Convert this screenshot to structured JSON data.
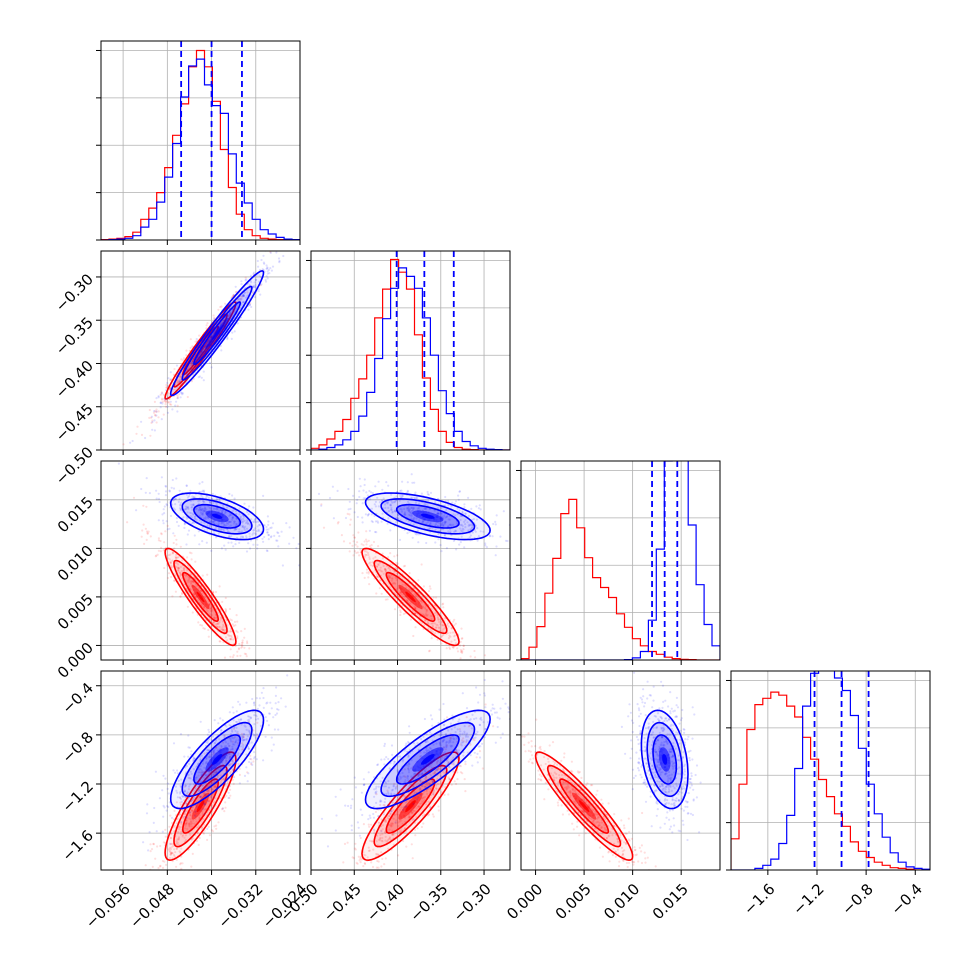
{
  "chart_data": {
    "type": "corner",
    "grid": true,
    "parameters": [
      {
        "range": [
          -0.06,
          -0.024
        ],
        "ticks": [
          -0.056,
          -0.048,
          -0.04,
          -0.032,
          -0.024
        ],
        "tick_labels": [
          "−0.056",
          "−0.048",
          "−0.040",
          "−0.032",
          "−0.024"
        ]
      },
      {
        "range": [
          -0.5,
          -0.27
        ],
        "ticks": [
          -0.5,
          -0.45,
          -0.4,
          -0.35,
          -0.3
        ],
        "tick_labels": [
          "−0.50",
          "−0.45",
          "−0.40",
          "−0.35",
          "−0.30"
        ]
      },
      {
        "range": [
          -0.0015,
          0.019
        ],
        "ticks": [
          0.0,
          0.005,
          0.01,
          0.015
        ],
        "tick_labels": [
          "0.000",
          "0.005",
          "0.010",
          "0.015"
        ]
      },
      {
        "range": [
          -1.9,
          -0.28
        ],
        "ticks": [
          -1.6,
          -1.2,
          -0.8,
          -0.4
        ],
        "tick_labels": [
          "−1.6",
          "−1.2",
          "−0.8",
          "−0.4"
        ]
      }
    ],
    "series": [
      {
        "color": "#ff0000",
        "mean": [
          -0.042,
          -0.385,
          0.005,
          -1.38
        ],
        "std": [
          0.0032,
          0.028,
          0.0025,
          0.22
        ],
        "corr": [
          [
            1,
            0.97,
            -0.92,
            0.86
          ],
          [
            0.97,
            1,
            -0.92,
            0.88
          ],
          [
            -0.92,
            -0.92,
            1,
            -0.93
          ],
          [
            0.86,
            0.88,
            -0.93,
            1
          ]
        ]
      },
      {
        "color": "#0000ff",
        "mean": [
          -0.039,
          -0.365,
          0.0133,
          -1.0
        ],
        "std": [
          0.0042,
          0.036,
          0.0012,
          0.2
        ],
        "corr": [
          [
            1,
            0.97,
            -0.55,
            0.8
          ],
          [
            0.97,
            1,
            -0.6,
            0.82
          ],
          [
            -0.55,
            -0.6,
            1,
            -0.3
          ],
          [
            0.8,
            0.82,
            -0.3,
            1
          ]
        ]
      }
    ],
    "quantile_lines": {
      "color": "#0000ff",
      "style": "dashed",
      "values": [
        [
          -0.0455,
          -0.04,
          -0.0345
        ],
        [
          -0.401,
          -0.369,
          -0.335
        ],
        [
          0.012,
          0.0133,
          0.0146
        ],
        [
          -1.22,
          -1.0,
          -0.78
        ]
      ]
    },
    "histograms": [
      {
        "bins": 25,
        "red": [
          1,
          2,
          4,
          8,
          18,
          48,
          74,
          110,
          168,
          243,
          316,
          402,
          440,
          402,
          322,
          210,
          122,
          60,
          24,
          10,
          4,
          2,
          1,
          0,
          0
        ],
        "blue": [
          0,
          1,
          2,
          4,
          10,
          30,
          48,
          88,
          146,
          224,
          332,
          404,
          420,
          360,
          312,
          294,
          200,
          132,
          86,
          48,
          24,
          14,
          6,
          2,
          1
        ]
      },
      {
        "bins": 25,
        "red": [
          4,
          12,
          26,
          44,
          72,
          122,
          168,
          224,
          312,
          380,
          450,
          420,
          380,
          272,
          170,
          96,
          44,
          18,
          6,
          2,
          1,
          0,
          0,
          0,
          0
        ],
        "blue": [
          0,
          2,
          6,
          12,
          24,
          44,
          80,
          136,
          216,
          310,
          382,
          430,
          410,
          382,
          312,
          224,
          140,
          86,
          44,
          20,
          10,
          4,
          2,
          1,
          0
        ],
        "ylim_max": 470
      },
      {
        "bins": 25,
        "red": [
          4,
          36,
          94,
          188,
          286,
          412,
          452,
          372,
          288,
          232,
          204,
          176,
          130,
          92,
          60,
          40,
          24,
          16,
          8,
          4,
          2,
          1,
          0,
          0,
          0
        ],
        "blue": [
          0,
          0,
          0,
          0,
          0,
          0,
          0,
          0,
          0,
          0,
          0,
          0,
          0,
          1,
          6,
          24,
          112,
          312,
          560,
          664,
          580,
          380,
          212,
          100,
          40
        ],
        "ylim_max": 560
      },
      {
        "bins": 25,
        "red": [
          40,
          110,
          180,
          212,
          220,
          228,
          224,
          210,
          196,
          170,
          142,
          116,
          94,
          72,
          56,
          36,
          24,
          16,
          10,
          6,
          3,
          2,
          1,
          0,
          0
        ],
        "blue": [
          0,
          0,
          0,
          2,
          6,
          14,
          34,
          70,
          130,
          210,
          252,
          270,
          268,
          246,
          230,
          198,
          156,
          110,
          72,
          42,
          22,
          10,
          4,
          2,
          1
        ],
        "ylim_max": 255
      }
    ]
  }
}
